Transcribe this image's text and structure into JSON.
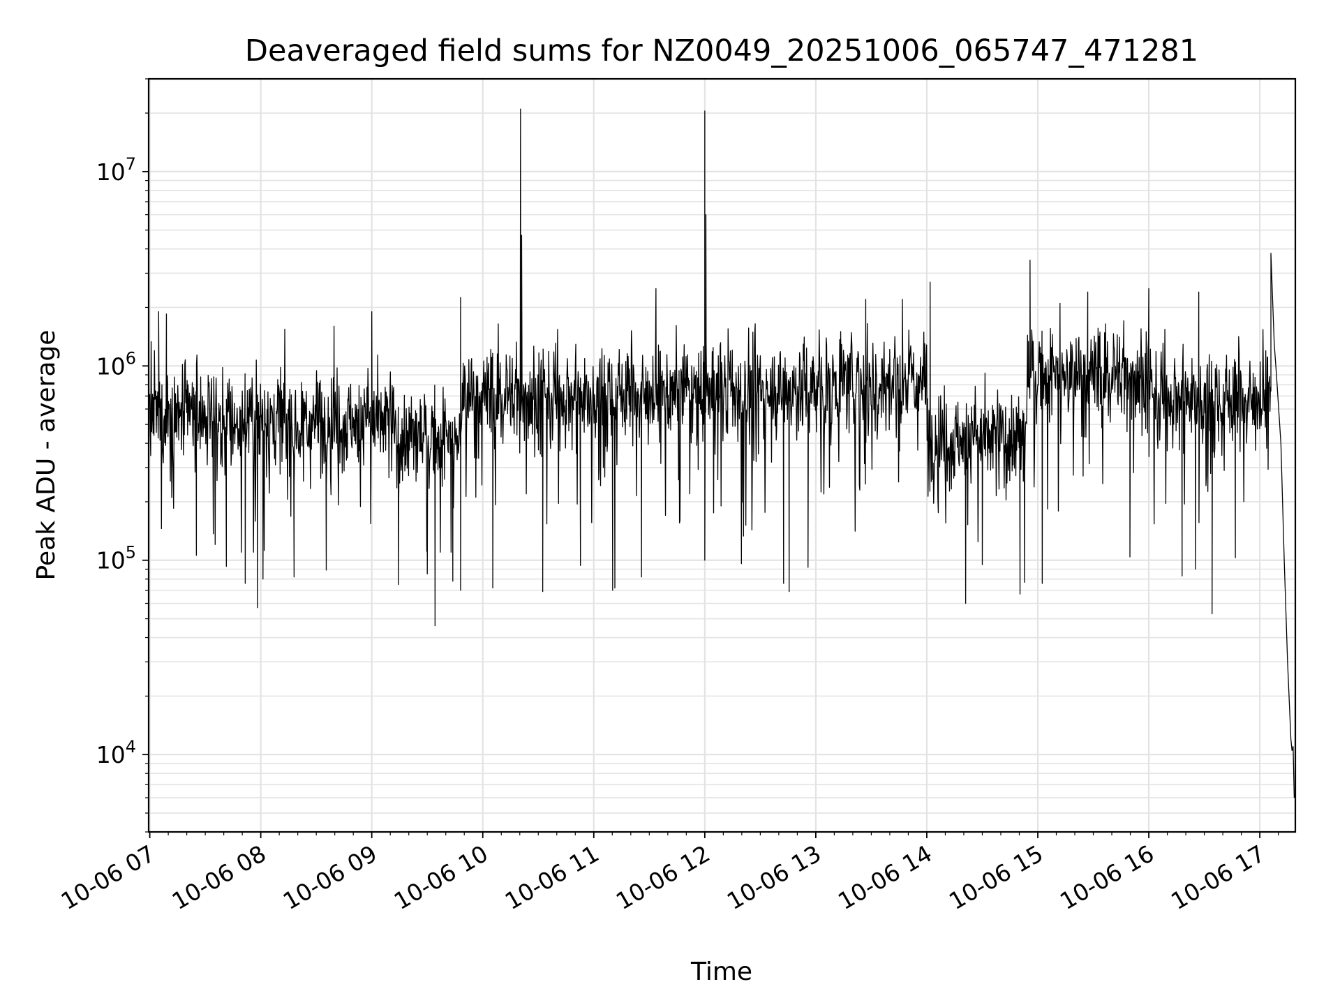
{
  "chart_data": {
    "type": "line",
    "title": "Deaveraged field sums for NZ0049_20251006_065747_471281",
    "xlabel": "Time",
    "ylabel": "Peak ADU - average",
    "yscale": "log",
    "ylim": [
      4000,
      30000000
    ],
    "xlim_hours": [
      6.99,
      17.32
    ],
    "grid": true,
    "x_tick_hours": [
      7,
      8,
      9,
      10,
      11,
      12,
      13,
      14,
      15,
      16,
      17
    ],
    "x_tick_labels": [
      "10-06 07",
      "10-06 08",
      "10-06 09",
      "10-06 10",
      "10-06 11",
      "10-06 12",
      "10-06 13",
      "10-06 14",
      "10-06 15",
      "10-06 16",
      "10-06 17"
    ],
    "y_major_ticks": [
      {
        "value": 10000,
        "base": "10",
        "exp": "4"
      },
      {
        "value": 100000,
        "base": "10",
        "exp": "5"
      },
      {
        "value": 1000000,
        "base": "10",
        "exp": "6"
      },
      {
        "value": 10000000,
        "base": "10",
        "exp": "7"
      }
    ],
    "series": [
      {
        "name": "Peak ADU - average",
        "color": "#000000",
        "segments": [
          {
            "start": 7.0,
            "end": 7.6,
            "median": 550000
          },
          {
            "start": 7.6,
            "end": 9.2,
            "median": 520000
          },
          {
            "start": 9.2,
            "end": 9.8,
            "median": 420000
          },
          {
            "start": 9.8,
            "end": 11.0,
            "median": 700000
          },
          {
            "start": 11.0,
            "end": 13.0,
            "median": 750000
          },
          {
            "start": 13.0,
            "end": 14.0,
            "median": 820000
          },
          {
            "start": 14.0,
            "end": 14.9,
            "median": 420000
          },
          {
            "start": 14.9,
            "end": 16.0,
            "median": 900000
          },
          {
            "start": 16.0,
            "end": 17.05,
            "median": 700000
          }
        ],
        "spikes": [
          {
            "x": 7.08,
            "y": 1900000
          },
          {
            "x": 7.15,
            "y": 1850000
          },
          {
            "x": 8.66,
            "y": 1600000
          },
          {
            "x": 9.0,
            "y": 1900000
          },
          {
            "x": 9.8,
            "y": 2250000
          },
          {
            "x": 10.34,
            "y": 21000000
          },
          {
            "x": 10.35,
            "y": 4700000
          },
          {
            "x": 11.56,
            "y": 2500000
          },
          {
            "x": 12.0,
            "y": 20500000
          },
          {
            "x": 12.01,
            "y": 6000000
          },
          {
            "x": 13.45,
            "y": 2200000
          },
          {
            "x": 13.78,
            "y": 2200000
          },
          {
            "x": 14.03,
            "y": 2700000
          },
          {
            "x": 14.93,
            "y": 3500000
          },
          {
            "x": 15.2,
            "y": 2100000
          },
          {
            "x": 15.45,
            "y": 2400000
          },
          {
            "x": 16.0,
            "y": 2500000
          },
          {
            "x": 16.45,
            "y": 2400000
          },
          {
            "x": 17.1,
            "y": 3800000
          }
        ],
        "dips": [
          {
            "x": 7.42,
            "y": 106000
          },
          {
            "x": 7.69,
            "y": 93000
          },
          {
            "x": 7.86,
            "y": 76000
          },
          {
            "x": 7.97,
            "y": 57000
          },
          {
            "x": 8.02,
            "y": 80000
          },
          {
            "x": 8.3,
            "y": 82000
          },
          {
            "x": 8.59,
            "y": 89000
          },
          {
            "x": 9.24,
            "y": 75000
          },
          {
            "x": 9.5,
            "y": 85000
          },
          {
            "x": 9.57,
            "y": 46000
          },
          {
            "x": 9.73,
            "y": 78000
          },
          {
            "x": 9.8,
            "y": 70000
          },
          {
            "x": 10.09,
            "y": 72000
          },
          {
            "x": 10.54,
            "y": 69000
          },
          {
            "x": 10.88,
            "y": 94000
          },
          {
            "x": 11.17,
            "y": 70000
          },
          {
            "x": 11.19,
            "y": 72000
          },
          {
            "x": 11.43,
            "y": 82000
          },
          {
            "x": 12.0,
            "y": 100000
          },
          {
            "x": 12.33,
            "y": 96000
          },
          {
            "x": 12.71,
            "y": 76000
          },
          {
            "x": 12.76,
            "y": 69000
          },
          {
            "x": 12.93,
            "y": 92000
          },
          {
            "x": 14.35,
            "y": 60000
          },
          {
            "x": 14.5,
            "y": 95000
          },
          {
            "x": 14.84,
            "y": 67000
          },
          {
            "x": 14.88,
            "y": 77000
          },
          {
            "x": 15.04,
            "y": 76000
          },
          {
            "x": 15.83,
            "y": 104000
          },
          {
            "x": 16.3,
            "y": 83000
          },
          {
            "x": 16.42,
            "y": 90000
          },
          {
            "x": 16.57,
            "y": 53000
          },
          {
            "x": 16.78,
            "y": 103000
          }
        ],
        "tail": [
          {
            "x": 17.1,
            "y": 1000000
          },
          {
            "x": 17.13,
            "y": 1300000
          },
          {
            "x": 17.15,
            "y": 900000
          },
          {
            "x": 17.19,
            "y": 400000
          },
          {
            "x": 17.22,
            "y": 100000
          },
          {
            "x": 17.25,
            "y": 30000
          },
          {
            "x": 17.28,
            "y": 12000
          },
          {
            "x": 17.29,
            "y": 10500
          },
          {
            "x": 17.3,
            "y": 11000
          },
          {
            "x": 17.31,
            "y": 6000
          }
        ]
      }
    ]
  }
}
